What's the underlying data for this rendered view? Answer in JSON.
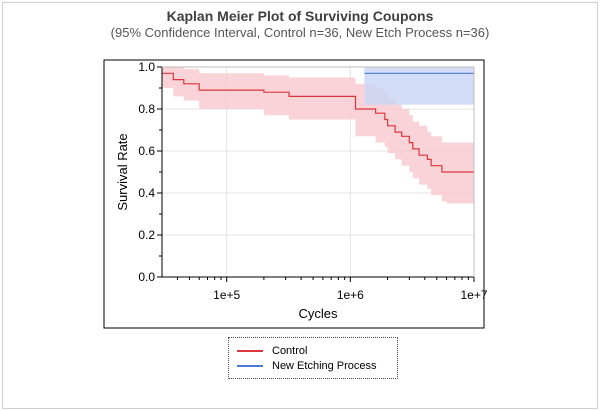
{
  "chart_data": {
    "type": "line",
    "title": "Kaplan Meier Plot of Surviving Coupons",
    "subtitle": "(95% Confidence Interval, Control n=36, New Etch Process n=36)",
    "xlabel": "Cycles",
    "ylabel": "Survival Rate",
    "x_scale": "log",
    "xlim": [
      30000,
      10000000
    ],
    "ylim": [
      0,
      1
    ],
    "x_ticks": [
      100000,
      1000000,
      10000000
    ],
    "x_tick_labels": [
      "1e+5",
      "1e+6",
      "1e+7"
    ],
    "y_ticks": [
      0,
      0.2,
      0.4,
      0.6,
      0.8,
      1.0
    ],
    "y_tick_labels": [
      "0.0",
      "0.2",
      "0.4",
      "0.6",
      "0.8",
      "1.0"
    ],
    "grid": true,
    "legend_position": "bottom",
    "series": [
      {
        "name": "Control",
        "color": "#d9363e",
        "band_color": "#f8c8cd",
        "x": [
          30000,
          37000,
          45000,
          60000,
          200000,
          320000,
          1100000,
          1600000,
          1900000,
          2000000,
          2300000,
          2600000,
          3000000,
          3200000,
          3600000,
          4200000,
          4500000,
          5500000,
          6000000,
          6500000,
          7500000,
          10000000
        ],
        "y": [
          0.97,
          0.94,
          0.92,
          0.89,
          0.88,
          0.86,
          0.8,
          0.78,
          0.75,
          0.72,
          0.69,
          0.67,
          0.64,
          0.61,
          0.58,
          0.56,
          0.53,
          0.5,
          0.5,
          0.5,
          0.5,
          0.5
        ],
        "ci_lower": [
          0.9,
          0.86,
          0.84,
          0.8,
          0.77,
          0.75,
          0.67,
          0.64,
          0.62,
          0.59,
          0.56,
          0.53,
          0.5,
          0.47,
          0.44,
          0.42,
          0.39,
          0.36,
          0.35,
          0.35,
          0.35,
          0.35
        ],
        "ci_upper": [
          1.0,
          1.0,
          0.99,
          0.97,
          0.96,
          0.95,
          0.92,
          0.9,
          0.88,
          0.85,
          0.82,
          0.8,
          0.77,
          0.74,
          0.72,
          0.69,
          0.67,
          0.64,
          0.64,
          0.64,
          0.64,
          0.64
        ]
      },
      {
        "name": "New Etching Process",
        "color": "#4a7bd0",
        "band_color": "#c8d4f6",
        "x": [
          1300000,
          10000000
        ],
        "y": [
          0.97,
          0.97
        ],
        "ci_lower": [
          0.82,
          0.82
        ],
        "ci_upper": [
          1.0,
          1.0
        ]
      }
    ]
  }
}
